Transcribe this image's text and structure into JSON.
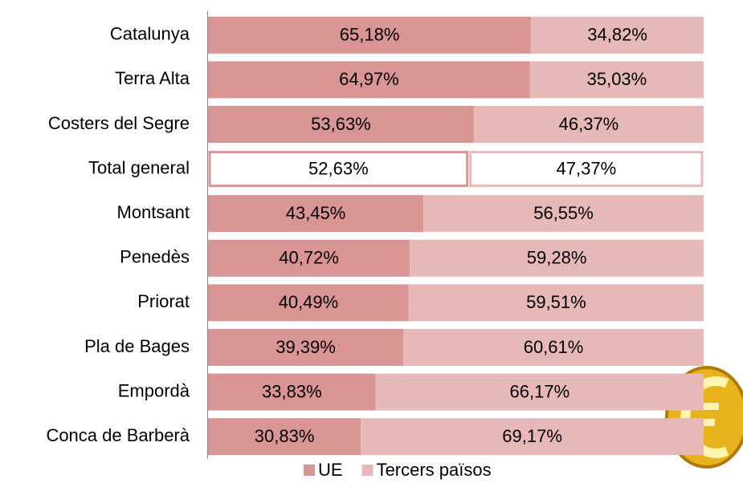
{
  "chart_data": {
    "type": "stacked_bar_horizontal",
    "categories": [
      "Catalunya",
      "Terra Alta",
      "Costers del Segre",
      "Total general",
      "Montsant",
      "Penedès",
      "Priorat",
      "Pla de Bages",
      "Empordà",
      "Conca de Barberà"
    ],
    "highlight": "Total general",
    "series": [
      {
        "name": "UE",
        "color": "#d99594",
        "values": [
          65.18,
          64.97,
          53.63,
          52.63,
          43.45,
          40.72,
          40.49,
          39.39,
          33.83,
          30.83
        ],
        "value_labels": [
          "65,18%",
          "64,97%",
          "53,63%",
          "52,63%",
          "43,45%",
          "40,72%",
          "40,49%",
          "39,39%",
          "33,83%",
          "30,83%"
        ]
      },
      {
        "name": "Tercers països",
        "color": "#e6b9b8",
        "values": [
          34.82,
          35.03,
          46.37,
          47.37,
          56.55,
          59.28,
          59.51,
          60.61,
          66.17,
          69.17
        ],
        "value_labels": [
          "34,82%",
          "35,03%",
          "46,37%",
          "47,37%",
          "56,55%",
          "59,28%",
          "59,51%",
          "60,61%",
          "66,17%",
          "69,17%"
        ]
      }
    ],
    "xlim": [
      0,
      100
    ],
    "legend": "bottom"
  }
}
